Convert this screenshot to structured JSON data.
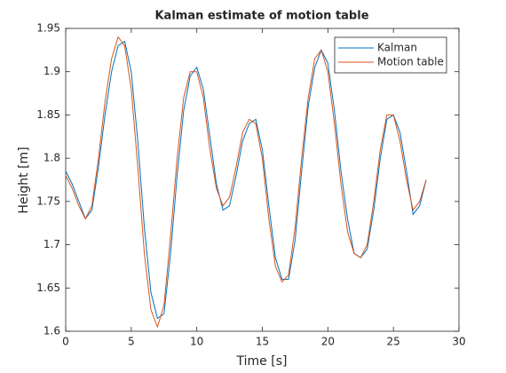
{
  "chart_data": {
    "type": "line",
    "title": "Kalman estimate of motion table",
    "xlabel": "Time [s]",
    "ylabel": "Height [m]",
    "x": [
      0,
      0.5,
      1,
      1.5,
      2,
      2.5,
      3,
      3.5,
      4,
      4.5,
      5,
      5.5,
      6,
      6.5,
      7,
      7.5,
      8,
      8.5,
      9,
      9.5,
      10,
      10.5,
      11,
      11.5,
      12,
      12.5,
      13,
      13.5,
      14,
      14.5,
      15,
      15.5,
      16,
      16.5,
      17,
      17.5,
      18,
      18.5,
      19,
      19.5,
      20,
      20.5,
      21,
      21.5,
      22,
      22.5,
      23,
      23.5,
      24,
      24.5,
      25,
      25.5,
      26,
      26.5,
      27,
      27.5
    ],
    "series": [
      {
        "name": "Kalman",
        "color": "#0072bd",
        "values": [
          1.785,
          1.77,
          1.75,
          1.73,
          1.74,
          1.79,
          1.85,
          1.9,
          1.93,
          1.935,
          1.9,
          1.82,
          1.72,
          1.645,
          1.615,
          1.62,
          1.69,
          1.78,
          1.855,
          1.895,
          1.905,
          1.88,
          1.825,
          1.77,
          1.74,
          1.745,
          1.78,
          1.82,
          1.84,
          1.845,
          1.81,
          1.745,
          1.685,
          1.66,
          1.66,
          1.705,
          1.785,
          1.86,
          1.905,
          1.925,
          1.91,
          1.855,
          1.785,
          1.73,
          1.69,
          1.685,
          1.695,
          1.74,
          1.8,
          1.845,
          1.85,
          1.83,
          1.785,
          1.735,
          1.745,
          1.775
        ]
      },
      {
        "name": "Motion table",
        "color": "#d95319",
        "values": [
          1.78,
          1.765,
          1.745,
          1.73,
          1.745,
          1.8,
          1.865,
          1.915,
          1.94,
          1.93,
          1.88,
          1.79,
          1.69,
          1.625,
          1.605,
          1.63,
          1.71,
          1.8,
          1.87,
          1.9,
          1.9,
          1.87,
          1.81,
          1.765,
          1.745,
          1.755,
          1.79,
          1.83,
          1.845,
          1.84,
          1.8,
          1.73,
          1.675,
          1.657,
          1.665,
          1.72,
          1.8,
          1.87,
          1.915,
          1.925,
          1.9,
          1.84,
          1.77,
          1.715,
          1.69,
          1.685,
          1.7,
          1.75,
          1.81,
          1.85,
          1.85,
          1.82,
          1.775,
          1.74,
          1.75,
          1.775
        ]
      }
    ],
    "xlim": [
      0,
      30
    ],
    "xticks": [
      0,
      5,
      10,
      15,
      20,
      25,
      30
    ],
    "ylim": [
      1.6,
      1.95
    ],
    "yticks": [
      1.6,
      1.65,
      1.7,
      1.75,
      1.8,
      1.85,
      1.9,
      1.95
    ],
    "legend": "northeast",
    "grid": false
  }
}
